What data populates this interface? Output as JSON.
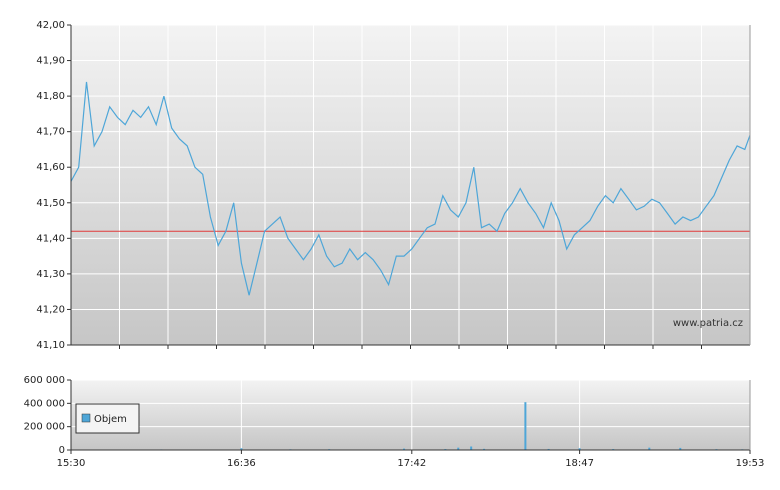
{
  "chart_data": [
    {
      "type": "line",
      "watermark": "www.patria.cz",
      "color": "#4ea6d8",
      "xlim": [
        "15:30",
        "19:53"
      ],
      "x": [
        "15:30",
        "15:33",
        "15:36",
        "15:39",
        "15:42",
        "15:45",
        "15:48",
        "15:51",
        "15:54",
        "15:57",
        "16:00",
        "16:03",
        "16:06",
        "16:09",
        "16:12",
        "16:15",
        "16:18",
        "16:21",
        "16:24",
        "16:27",
        "16:30",
        "16:33",
        "16:36",
        "16:39",
        "16:42",
        "16:45",
        "16:48",
        "16:51",
        "16:54",
        "16:57",
        "17:00",
        "17:03",
        "17:06",
        "17:09",
        "17:12",
        "17:15",
        "17:18",
        "17:21",
        "17:24",
        "17:27",
        "17:30",
        "17:33",
        "17:36",
        "17:39",
        "17:42",
        "17:45",
        "17:48",
        "17:51",
        "17:54",
        "17:57",
        "18:00",
        "18:03",
        "18:06",
        "18:09",
        "18:12",
        "18:15",
        "18:18",
        "18:21",
        "18:24",
        "18:27",
        "18:30",
        "18:33",
        "18:36",
        "18:39",
        "18:42",
        "18:45",
        "18:48",
        "18:51",
        "18:54",
        "18:57",
        "19:00",
        "19:03",
        "19:06",
        "19:09",
        "19:12",
        "19:15",
        "19:18",
        "19:21",
        "19:24",
        "19:27",
        "19:30",
        "19:33",
        "19:36",
        "19:39",
        "19:42",
        "19:45",
        "19:48",
        "19:51",
        "19:53"
      ],
      "values": [
        41.56,
        41.6,
        41.84,
        41.66,
        41.7,
        41.77,
        41.74,
        41.72,
        41.76,
        41.74,
        41.77,
        41.72,
        41.8,
        41.71,
        41.68,
        41.66,
        41.6,
        41.58,
        41.46,
        41.38,
        41.42,
        41.5,
        41.33,
        41.24,
        41.33,
        41.42,
        41.44,
        41.46,
        41.4,
        41.37,
        41.34,
        41.37,
        41.41,
        41.35,
        41.32,
        41.33,
        41.37,
        41.34,
        41.36,
        41.34,
        41.31,
        41.27,
        41.35,
        41.35,
        41.37,
        41.4,
        41.43,
        41.44,
        41.52,
        41.48,
        41.46,
        41.5,
        41.6,
        41.43,
        41.44,
        41.42,
        41.47,
        41.5,
        41.54,
        41.5,
        41.47,
        41.43,
        41.5,
        41.45,
        41.37,
        41.41,
        41.43,
        41.45,
        41.49,
        41.52,
        41.5,
        41.54,
        41.51,
        41.48,
        41.49,
        41.51,
        41.5,
        41.47,
        41.44,
        41.46,
        41.45,
        41.46,
        41.49,
        41.52,
        41.57,
        41.62,
        41.66,
        41.65,
        41.69
      ],
      "reference_line": {
        "value": 41.42,
        "color": "#e03a3a"
      },
      "ylim": [
        41.1,
        42.0
      ],
      "yticks": [
        {
          "value": 41.1,
          "label": "41,10"
        },
        {
          "value": 41.2,
          "label": "41,20"
        },
        {
          "value": 41.3,
          "label": "41,30"
        },
        {
          "value": 41.4,
          "label": "41,40"
        },
        {
          "value": 41.5,
          "label": "41,50"
        },
        {
          "value": 41.6,
          "label": "41,60"
        },
        {
          "value": 41.7,
          "label": "41,70"
        },
        {
          "value": 41.8,
          "label": "41,80"
        },
        {
          "value": 41.9,
          "label": "41,90"
        },
        {
          "value": 42.0,
          "label": "42,00"
        }
      ],
      "grid": true
    },
    {
      "type": "bar",
      "xlim": [
        "15:30",
        "19:53"
      ],
      "x": [
        "15:42",
        "16:05",
        "16:36",
        "16:55",
        "17:10",
        "17:39",
        "17:55",
        "18:00",
        "18:05",
        "18:10",
        "18:26",
        "18:35",
        "18:47",
        "19:00",
        "19:14",
        "19:26",
        "19:40",
        "19:50"
      ],
      "series": [
        {
          "name": "Objem",
          "color": "#4ea6d8",
          "values": [
            4000,
            5000,
            15000,
            6000,
            7000,
            12000,
            8000,
            20000,
            30000,
            10000,
            410000,
            9000,
            15000,
            8000,
            20000,
            18000,
            7000,
            6000
          ]
        }
      ],
      "ylim": [
        0,
        600000
      ],
      "yticks": [
        {
          "value": 0,
          "label": "0"
        },
        {
          "value": 200000,
          "label": "200 000"
        },
        {
          "value": 400000,
          "label": "400 000"
        },
        {
          "value": 600000,
          "label": "600 000"
        }
      ],
      "xticks": [
        "15:30",
        "16:36",
        "17:42",
        "18:47",
        "19:53"
      ],
      "grid": true,
      "legend": "upper-left"
    }
  ]
}
